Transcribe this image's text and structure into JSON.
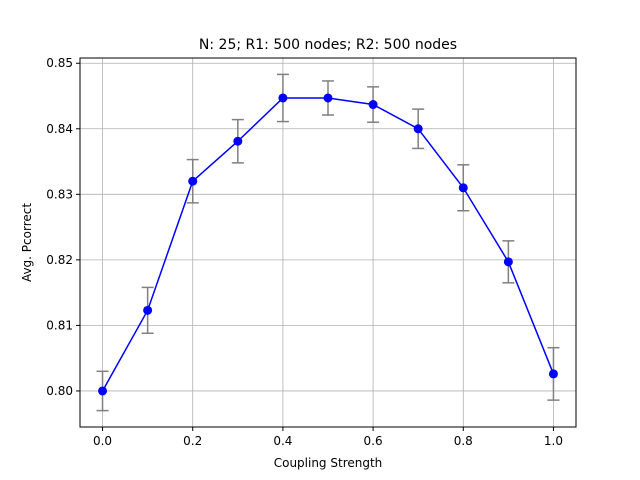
{
  "chart_data": {
    "type": "line",
    "title": "N: 25; R1: 500 nodes; R2: 500 nodes",
    "xlabel": "Coupling Strength",
    "ylabel": "Avg. Pcorrect",
    "xlim": [
      -0.05,
      1.05
    ],
    "ylim": [
      0.7945,
      0.8508
    ],
    "xticks": [
      0.0,
      0.2,
      0.4,
      0.6,
      0.8,
      1.0
    ],
    "xtick_labels": [
      "0.0",
      "0.2",
      "0.4",
      "0.6",
      "0.8",
      "1.0"
    ],
    "yticks": [
      0.8,
      0.81,
      0.82,
      0.83,
      0.84,
      0.85
    ],
    "ytick_labels": [
      "0.80",
      "0.81",
      "0.82",
      "0.83",
      "0.84",
      "0.85"
    ],
    "grid": true,
    "series": [
      {
        "color": "#0000ff",
        "errorbar_color": "#808080",
        "x": [
          0.0,
          0.1,
          0.2,
          0.3,
          0.4,
          0.5,
          0.6,
          0.7,
          0.8,
          0.9,
          1.0
        ],
        "y": [
          0.8,
          0.8123,
          0.832,
          0.8381,
          0.8447,
          0.8447,
          0.8437,
          0.84,
          0.831,
          0.8197,
          0.8026
        ],
        "yerr": [
          0.003,
          0.0035,
          0.0033,
          0.0033,
          0.0036,
          0.0026,
          0.0027,
          0.003,
          0.0035,
          0.0032,
          0.004
        ]
      }
    ]
  }
}
